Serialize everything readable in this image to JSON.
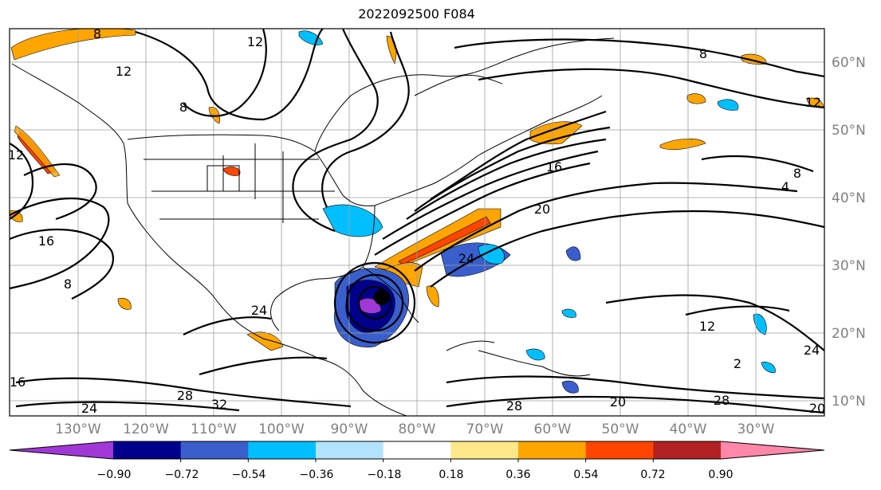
{
  "title": "2022092500 F084",
  "map": {
    "lon_labels": [
      "130°W",
      "120°W",
      "110°W",
      "100°W",
      "90°W",
      "80°W",
      "70°W",
      "60°W",
      "50°W",
      "40°W",
      "30°W"
    ],
    "lat_labels": [
      "60°N",
      "50°N",
      "40°N",
      "30°N",
      "20°N",
      "10°N"
    ],
    "contour_labels": [
      "8",
      "12",
      "12",
      "8",
      "8",
      "12",
      "8",
      "16",
      "24",
      "20",
      "16",
      "8",
      "28",
      "32",
      "24",
      "24",
      "12",
      "24",
      "20",
      "28",
      "20",
      "2",
      "16",
      "4",
      "28",
      "12"
    ],
    "storm_marker": "filled-circle"
  },
  "colorbar": {
    "colors": [
      "#9f38d6",
      "#00008b",
      "#3a5fcd",
      "#00bfff",
      "#b2e2ff",
      "#ffffff",
      "#ffe88a",
      "#ffa500",
      "#ff4500",
      "#b22222",
      "#ff88aa"
    ],
    "tick_labels": [
      "−0.90",
      "−0.72",
      "−0.54",
      "−0.36",
      "−0.18",
      "0.18",
      "0.36",
      "0.54",
      "0.72",
      "0.90"
    ]
  }
}
